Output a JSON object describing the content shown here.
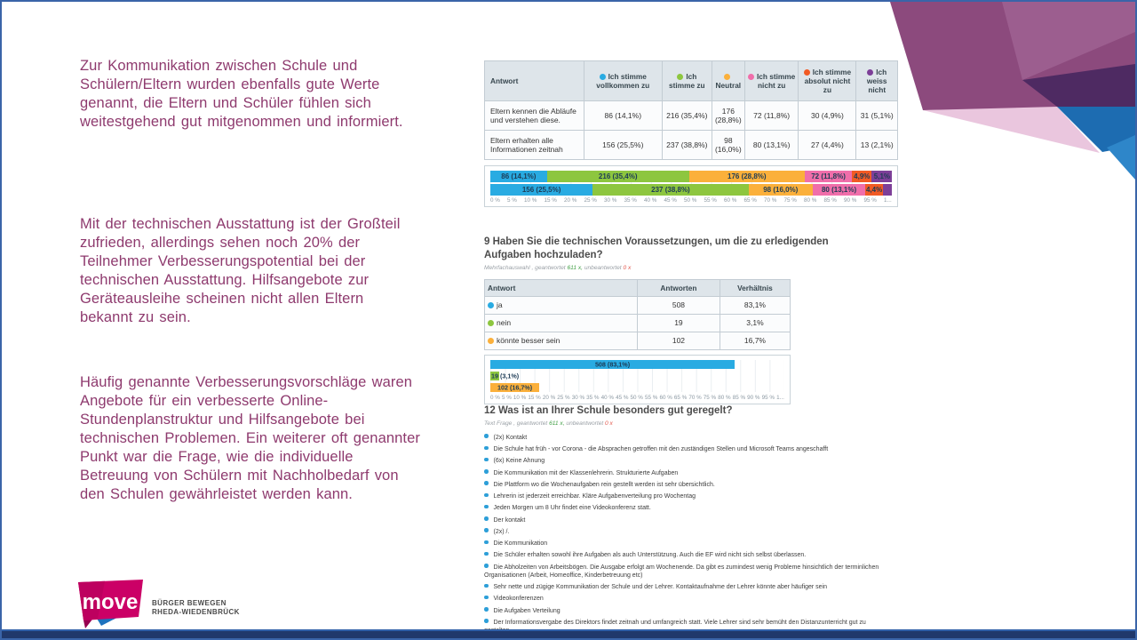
{
  "slide": {
    "left_text": {
      "p1": "Zur Kommunikation zwischen Schule und Schülern/Eltern wurden ebenfalls gute Werte genannt, die Eltern und Schüler fühlen sich weitestgehend gut mitgenommen und informiert.",
      "p2": "Mit der technischen Ausstattung ist der Großteil zufrieden, allerdings sehen noch 20% der Teilnehmer Verbesserungspotential bei der technischen Ausstattung. Hilfsangebote zur Geräteausleihe scheinen nicht allen Eltern bekannt zu sein.",
      "p3": "Häufig genannte Verbesserungsvorschläge waren Angebote für ein verbesserte Online-Stundenplanstruktur und Hilfsangebote bei technischen Problemen. Ein weiterer oft genannter Punkt war die Frage, wie die individuelle Betreuung von Schülern mit Nachholbedarf von den Schulen gewährleistet werden kann."
    },
    "logo": {
      "brand": "move",
      "tagline1": "BÜRGER BEWEGEN",
      "tagline2": "RHEDA-WIEDENBRÜCK"
    },
    "colors": {
      "body_text": "#8e3a6e",
      "bottom_bar": "#20386b",
      "slide_border": "#3a64a8",
      "logo_magenta": "#cb0066",
      "logo_blue": "#1e73be"
    }
  },
  "chart_data": [
    {
      "id": "q8",
      "type": "bar",
      "stacked": true,
      "orientation": "horizontal",
      "row_header": "Antwort",
      "categories": [
        "Eltern kennen die Abläufe und verstehen diese.",
        "Eltern erhalten alle Informationen zeitnah"
      ],
      "series": [
        {
          "name": "Ich stimme vollkommen zu",
          "color": "#29abe2",
          "cells": [
            "86 (14,1%)",
            "156 (25,5%)"
          ],
          "pct": [
            14.1,
            25.5
          ],
          "bar_labels": [
            "86 (14,1%)",
            "156 (25,5%)"
          ]
        },
        {
          "name": "Ich stimme zu",
          "color": "#8dc63f",
          "cells": [
            "216 (35,4%)",
            "237 (38,8%)"
          ],
          "pct": [
            35.4,
            38.8
          ],
          "bar_labels": [
            "216 (35,4%)",
            "237 (38,8%)"
          ]
        },
        {
          "name": "Neutral",
          "color": "#fbb03b",
          "cells": [
            "176 (28,8%)",
            "98 (16,0%)"
          ],
          "pct": [
            28.8,
            16.0
          ],
          "bar_labels": [
            "176 (28,8%)",
            "98 (16,0%)"
          ]
        },
        {
          "name": "Ich stimme nicht zu",
          "color": "#f06eaa",
          "cells": [
            "72 (11,8%)",
            "80 (13,1%)"
          ],
          "pct": [
            11.8,
            13.1
          ],
          "bar_labels": [
            "72 (11,8%)",
            "80 (13,1%)"
          ]
        },
        {
          "name": "Ich stimme absolut nicht zu",
          "color": "#f15a24",
          "cells": [
            "30 (4,9%)",
            "27 (4,4%)"
          ],
          "pct": [
            4.9,
            4.4
          ],
          "bar_labels": [
            "4,9%",
            "4,4%"
          ]
        },
        {
          "name": "Ich weiss nicht",
          "color": "#7d3f98",
          "cells": [
            "31 (5,1%)",
            "13 (2,1%)"
          ],
          "pct": [
            5.1,
            2.1
          ],
          "bar_labels": [
            "5,1%",
            ""
          ]
        }
      ],
      "xlim": [
        0,
        100
      ],
      "x_ticks": [
        "0 %",
        "5 %",
        "10 %",
        "15 %",
        "20 %",
        "25 %",
        "30 %",
        "35 %",
        "40 %",
        "45 %",
        "50 %",
        "55 %",
        "60 %",
        "65 %",
        "70 %",
        "75 %",
        "80 %",
        "85 %",
        "90 %",
        "95 %",
        "1..."
      ]
    },
    {
      "id": "q9",
      "type": "bar",
      "orientation": "horizontal",
      "title": "9 Haben Sie die technischen Voraussetzungen, um die zu erledigenden Aufgaben hochzuladen?",
      "meta_prefix": "Mehrfachauswahl , geantwortet",
      "meta_answered": "611 x,",
      "meta_mid": "unbeantwortet",
      "meta_unanswered": "0 x",
      "headers": [
        "Antwort",
        "Antworten",
        "Verhältnis"
      ],
      "rows": [
        {
          "label": "ja",
          "color": "#29abe2",
          "count": "508",
          "ratio": "83,1%",
          "pct": 83.1,
          "bar_label": "508 (83,1%)"
        },
        {
          "label": "nein",
          "color": "#8dc63f",
          "count": "19",
          "ratio": "3,1%",
          "pct": 3.1,
          "bar_label": "19 (3,1%)"
        },
        {
          "label": "könnte besser sein",
          "color": "#fbb03b",
          "count": "102",
          "ratio": "16,7%",
          "pct": 16.7,
          "bar_label": "102 (16,7%)"
        }
      ],
      "xlim": [
        0,
        100
      ],
      "x_ticks": [
        "0 %",
        "5 %",
        "10 %",
        "15 %",
        "20 %",
        "25 %",
        "30 %",
        "35 %",
        "40 %",
        "45 %",
        "50 %",
        "55 %",
        "60 %",
        "65 %",
        "70 %",
        "75 %",
        "80 %",
        "85 %",
        "90 %",
        "95 %",
        "1..."
      ]
    },
    {
      "id": "q12",
      "type": "table",
      "title": "12 Was ist an Ihrer Schule besonders gut geregelt?",
      "meta_prefix": "Text Frage , geantwortet",
      "meta_answered": "611 x,",
      "meta_mid": "unbeantwortet",
      "meta_unanswered": "0 x",
      "items": [
        "(2x) Kontakt",
        "Die Schule hat früh - vor Corona - die Absprachen getroffen mit den zuständigen Stellen und Microsoft Teams angeschafft",
        "(6x) Keine Ahnung",
        "Die Kommunikation mit der Klassenlehrerin. Strukturierte Aufgaben",
        "Die Plattform wo die Wochenaufgaben rein gestellt werden ist sehr übersichtlich.",
        "Lehrerin ist jederzeit erreichbar. Kläre Aufgabenverteilung pro Wochentag",
        "Jeden Morgen um 8 Uhr findet eine Videokonferenz statt.",
        "Der kontakt",
        "(2x) /.",
        "Die Kommunikation",
        "Die Schüler erhalten sowohl ihre Aufgaben als auch Unterstützung. Auch die EF wird nicht sich selbst überlassen.",
        "Die Abholzeiten von Arbeitsbögen. Die Ausgabe erfolgt am Wochenende. Da gibt es zumindest wenig Probleme hinsichtlich der terminlichen Organisationen (Arbeit, Homeoffice, Kinderbetreuung etc)",
        "Sehr nette und zügige Kommunikation der Schule und der Lehrer. Kontaktaufnahme der Lehrer könnte aber häufiger sein",
        "Videokonferenzen",
        "Die Aufgaben Verteilung",
        "Der Informationsvergabe des Direktors findet zeitnah und umfangreich statt. Viele Lehrer sind sehr bemüht den Distanzunterricht gut zu gestalten."
      ]
    }
  ]
}
